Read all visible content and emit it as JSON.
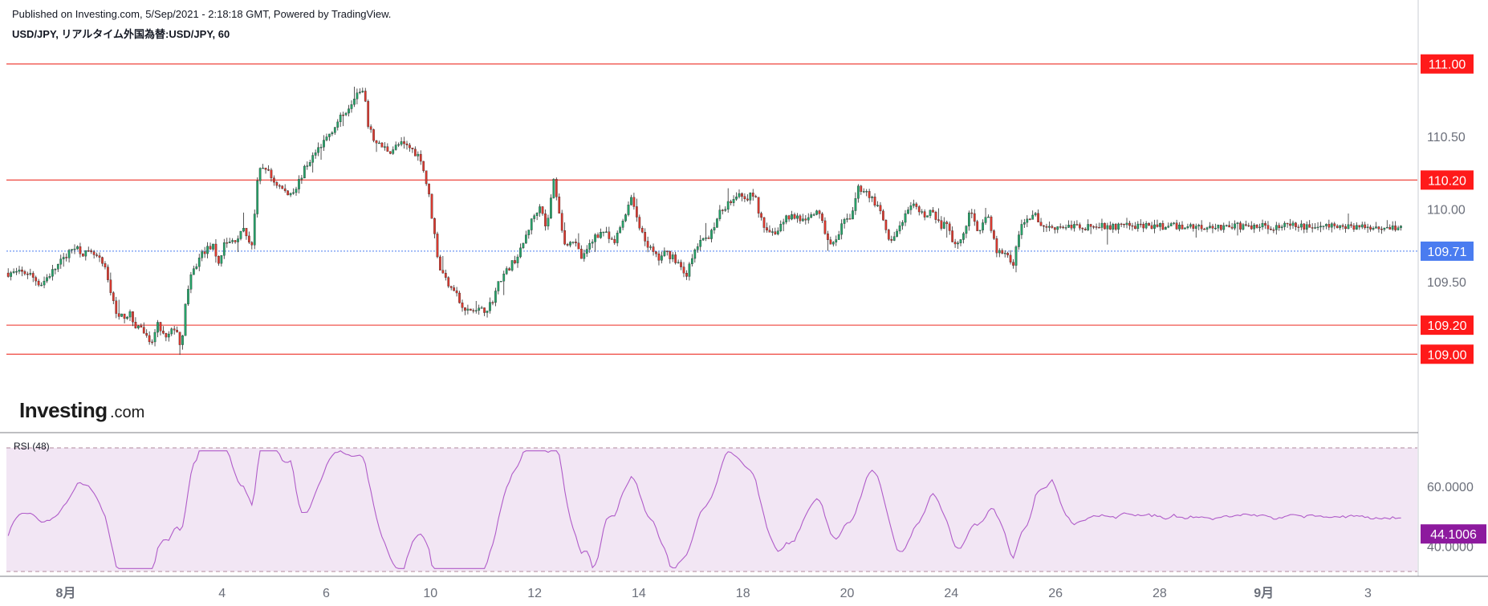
{
  "header": {
    "published": "Published on Investing.com, 5/Sep/2021 - 2:18:18 GMT, Powered by TradingView.",
    "symbol": "USD/JPY, リアルタイム外国為替:USD/JPY, 60"
  },
  "logo": {
    "brand": "Investing",
    "suffix": ".com"
  },
  "colors": {
    "up": "#26a269",
    "down": "#d9392f",
    "wick": "#2b2b2b",
    "level_line": "#f0554e",
    "level_tag": "#ff1a1a",
    "current_tag": "#4a7cf0",
    "current_line": "#4a7cf0",
    "rsi_line": "#b05cc9",
    "rsi_fill": "#f2e6f4",
    "rsi_tag": "#8d1a9e",
    "grid_dash": "#b08a9c"
  },
  "chart_data": [
    {
      "type": "candlestick",
      "title": "USD/JPY, リアルタイム外国為替:USD/JPY, 60",
      "xlabel": "",
      "ylabel": "",
      "ylim": [
        108.62,
        111.12
      ],
      "y_ticks": [
        "110.50",
        "110.00",
        "109.50"
      ],
      "x_ticks": [
        {
          "label": "8月",
          "day": 0,
          "bold": true
        },
        {
          "label": "4",
          "day": 3
        },
        {
          "label": "6",
          "day": 5
        },
        {
          "label": "10",
          "day": 7
        },
        {
          "label": "12",
          "day": 9
        },
        {
          "label": "14",
          "day": 11
        },
        {
          "label": "18",
          "day": 13
        },
        {
          "label": "20",
          "day": 15
        },
        {
          "label": "24",
          "day": 17
        },
        {
          "label": "26",
          "day": 19
        },
        {
          "label": "28",
          "day": 21
        },
        {
          "label": "9月",
          "day": 23,
          "bold": true
        },
        {
          "label": "3",
          "day": 25
        }
      ],
      "horizontal_levels": [
        "111.00",
        "110.20",
        "109.20",
        "109.00"
      ],
      "current_price": "109.71",
      "price_path": [
        [
          -0.74,
          109.56
        ],
        [
          -0.5,
          109.48
        ],
        [
          -0.2,
          109.6
        ],
        [
          0.05,
          109.7
        ],
        [
          0.15,
          109.75
        ],
        [
          0.3,
          109.7
        ],
        [
          0.55,
          109.68
        ],
        [
          0.72,
          109.6
        ],
        [
          0.9,
          109.35
        ],
        [
          1.0,
          109.25
        ],
        [
          1.2,
          109.28
        ],
        [
          1.3,
          109.2
        ],
        [
          1.45,
          109.18
        ],
        [
          1.6,
          109.05
        ],
        [
          1.75,
          109.2
        ],
        [
          1.9,
          109.1
        ],
        [
          2.1,
          109.2
        ],
        [
          2.2,
          108.98
        ],
        [
          2.27,
          109.35
        ],
        [
          2.4,
          109.55
        ],
        [
          2.6,
          109.7
        ],
        [
          2.8,
          109.75
        ],
        [
          2.9,
          109.6
        ],
        [
          3.0,
          109.75
        ],
        [
          3.2,
          109.78
        ],
        [
          3.4,
          109.85
        ],
        [
          3.55,
          109.75
        ],
        [
          3.68,
          110.25
        ],
        [
          3.8,
          110.3
        ],
        [
          3.95,
          110.2
        ],
        [
          4.1,
          110.15
        ],
        [
          4.25,
          110.1
        ],
        [
          4.4,
          110.15
        ],
        [
          4.6,
          110.3
        ],
        [
          4.8,
          110.4
        ],
        [
          5.0,
          110.5
        ],
        [
          5.2,
          110.6
        ],
        [
          5.4,
          110.7
        ],
        [
          5.55,
          110.8
        ],
        [
          5.7,
          110.8
        ],
        [
          5.8,
          110.55
        ],
        [
          5.95,
          110.45
        ],
        [
          6.2,
          110.4
        ],
        [
          6.4,
          110.45
        ],
        [
          6.6,
          110.42
        ],
        [
          6.8,
          110.35
        ],
        [
          6.95,
          110.1
        ],
        [
          7.05,
          109.85
        ],
        [
          7.15,
          109.6
        ],
        [
          7.3,
          109.5
        ],
        [
          7.45,
          109.45
        ],
        [
          7.6,
          109.3
        ],
        [
          7.8,
          109.3
        ],
        [
          8.0,
          109.3
        ],
        [
          8.15,
          109.35
        ],
        [
          8.3,
          109.5
        ],
        [
          8.5,
          109.6
        ],
        [
          8.7,
          109.7
        ],
        [
          8.9,
          109.9
        ],
        [
          9.1,
          110.05
        ],
        [
          9.2,
          109.85
        ],
        [
          9.35,
          110.2
        ],
        [
          9.45,
          110.0
        ],
        [
          9.55,
          109.75
        ],
        [
          9.7,
          109.8
        ],
        [
          9.9,
          109.65
        ],
        [
          10.1,
          109.8
        ],
        [
          10.3,
          109.85
        ],
        [
          10.5,
          109.75
        ],
        [
          10.7,
          109.95
        ],
        [
          10.85,
          110.1
        ],
        [
          11.0,
          109.85
        ],
        [
          11.15,
          109.75
        ],
        [
          11.35,
          109.65
        ],
        [
          11.5,
          109.7
        ],
        [
          11.7,
          109.65
        ],
        [
          11.9,
          109.55
        ],
        [
          12.1,
          109.75
        ],
        [
          12.3,
          109.8
        ],
        [
          12.5,
          109.95
        ],
        [
          12.7,
          110.05
        ],
        [
          12.9,
          110.12
        ],
        [
          13.05,
          110.08
        ],
        [
          13.2,
          110.1
        ],
        [
          13.35,
          109.9
        ],
        [
          13.5,
          109.85
        ],
        [
          13.65,
          109.85
        ],
        [
          13.8,
          109.95
        ],
        [
          14.0,
          109.95
        ],
        [
          14.2,
          109.9
        ],
        [
          14.4,
          110.0
        ],
        [
          14.6,
          109.8
        ],
        [
          14.75,
          109.75
        ],
        [
          14.9,
          109.9
        ],
        [
          15.05,
          109.95
        ],
        [
          15.2,
          110.15
        ],
        [
          15.35,
          110.12
        ],
        [
          15.5,
          110.05
        ],
        [
          15.65,
          109.95
        ],
        [
          15.8,
          109.75
        ],
        [
          15.9,
          109.8
        ],
        [
          16.0,
          109.9
        ],
        [
          16.1,
          109.95
        ],
        [
          16.25,
          110.02
        ],
        [
          16.45,
          109.95
        ],
        [
          16.6,
          110.0
        ],
        [
          16.7,
          109.9
        ],
        [
          16.9,
          109.88
        ],
        [
          17.05,
          109.75
        ],
        [
          17.2,
          109.8
        ],
        [
          17.35,
          110.0
        ],
        [
          17.5,
          109.85
        ],
        [
          17.7,
          109.95
        ],
        [
          17.85,
          109.7
        ],
        [
          18.05,
          109.7
        ],
        [
          18.15,
          109.6
        ],
        [
          18.3,
          109.85
        ],
        [
          18.45,
          109.95
        ],
        [
          18.6,
          109.95
        ],
        [
          18.75,
          109.88
        ]
      ],
      "rsi": {
        "title": "RSI (48)",
        "ylim": [
          31.5,
          73.0
        ],
        "y_ticks": [
          "60.0000",
          "40.0000"
        ],
        "value": "44.1006"
      }
    }
  ]
}
